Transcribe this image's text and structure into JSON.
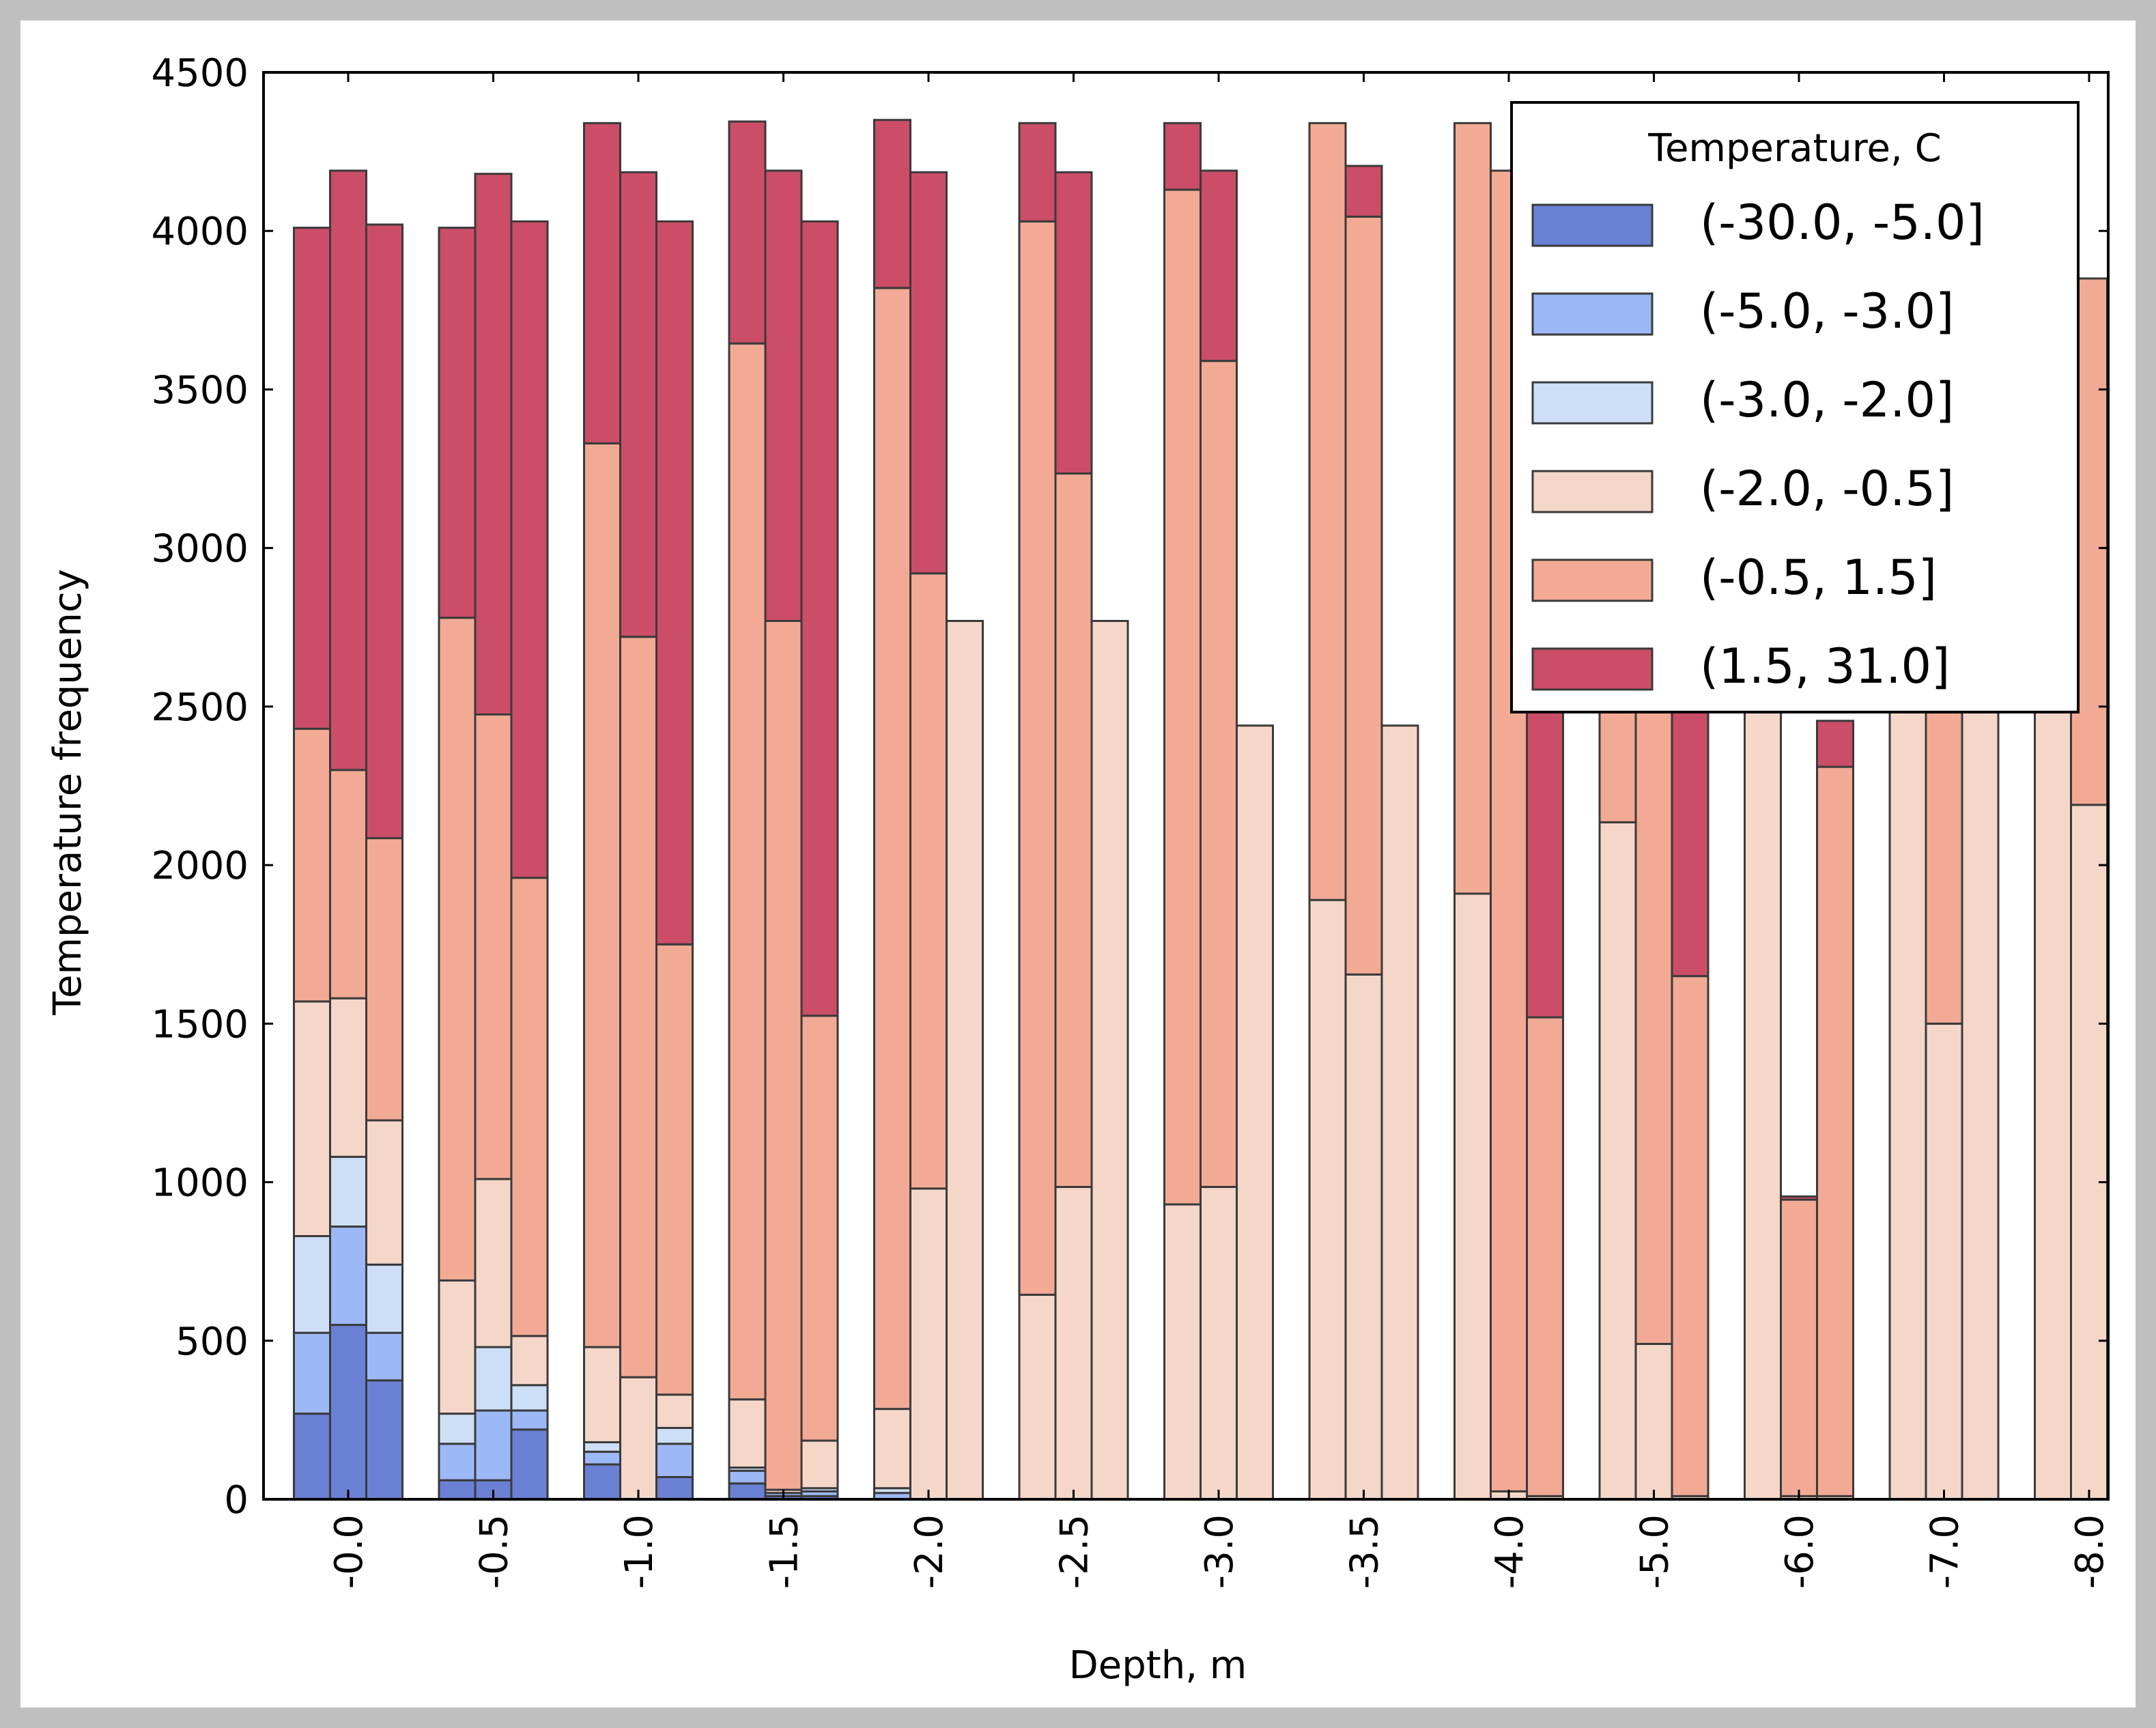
{
  "chart_data": {
    "type": "bar",
    "stacked": true,
    "grouped": true,
    "title": "",
    "xlabel": "Depth, m",
    "ylabel": "Temperature frequency",
    "ylim": [
      0,
      4500
    ],
    "yticks": [
      0,
      500,
      1000,
      1500,
      2000,
      2500,
      3000,
      3500,
      4000,
      4500
    ],
    "grid": false,
    "legend_title": "Temperature, C",
    "legend_position": "top-right",
    "categories": [
      "-0.0",
      "-0.5",
      "-1.0",
      "-1.5",
      "-2.0",
      "-2.5",
      "-3.0",
      "-3.5",
      "-4.0",
      "-5.0",
      "-6.0",
      "-7.0",
      "-8.0"
    ],
    "bars_per_group": 3,
    "series": [
      {
        "name": "(-30.0, -5.0]",
        "color": "#6a80d4",
        "values": [
          [
            270,
            550,
            375
          ],
          [
            60,
            60,
            220
          ],
          [
            110,
            0,
            70
          ],
          [
            50,
            10,
            10
          ],
          [
            0,
            0,
            0
          ],
          [
            0,
            0,
            0
          ],
          [
            0,
            0,
            0
          ],
          [
            0,
            0,
            0
          ],
          [
            0,
            0,
            0
          ],
          [
            0,
            0,
            0
          ],
          [
            0,
            0,
            0
          ],
          [
            0,
            0,
            0
          ],
          [
            0,
            0,
            0
          ]
        ]
      },
      {
        "name": "(-5.0, -3.0]",
        "color": "#9db8f6",
        "values": [
          [
            255,
            310,
            150
          ],
          [
            115,
            220,
            60
          ],
          [
            40,
            0,
            105
          ],
          [
            40,
            10,
            15
          ],
          [
            20,
            0,
            0
          ],
          [
            0,
            0,
            0
          ],
          [
            0,
            0,
            0
          ],
          [
            0,
            0,
            0
          ],
          [
            0,
            0,
            0
          ],
          [
            0,
            0,
            0
          ],
          [
            0,
            0,
            0
          ],
          [
            0,
            0,
            0
          ],
          [
            0,
            0,
            0
          ]
        ]
      },
      {
        "name": "(-3.0, -2.0]",
        "color": "#cddff7",
        "values": [
          [
            305,
            220,
            215
          ],
          [
            95,
            200,
            80
          ],
          [
            30,
            0,
            50
          ],
          [
            10,
            0,
            10
          ],
          [
            15,
            0,
            0
          ],
          [
            0,
            0,
            0
          ],
          [
            0,
            0,
            0
          ],
          [
            0,
            0,
            0
          ],
          [
            0,
            0,
            0
          ],
          [
            0,
            0,
            0
          ],
          [
            0,
            0,
            0
          ],
          [
            0,
            0,
            0
          ],
          [
            0,
            0,
            0
          ]
        ]
      },
      {
        "name": "(-2.0, -0.5]",
        "color": "#f4d7c9",
        "values": [
          [
            740,
            500,
            455
          ],
          [
            420,
            530,
            155
          ],
          [
            300,
            385,
            105
          ],
          [
            215,
            10,
            150
          ],
          [
            250,
            980,
            2770
          ],
          [
            645,
            985,
            2770
          ],
          [
            930,
            985,
            2440
          ],
          [
            1890,
            1655,
            2440
          ],
          [
            1910,
            25,
            10
          ],
          [
            2135,
            490,
            10
          ],
          [
            4340,
            10,
            10
          ],
          [
            4340,
            1500,
            4020
          ],
          [
            4340,
            2190,
            0
          ]
        ]
      },
      {
        "name": "(-0.5, 1.5]",
        "color": "#f2aa95",
        "values": [
          [
            860,
            720,
            890
          ],
          [
            2090,
            1465,
            1445
          ],
          [
            2850,
            2335,
            1420
          ],
          [
            3330,
            2740,
            1340
          ],
          [
            3535,
            1940,
            0
          ],
          [
            3385,
            2250,
            0
          ],
          [
            3200,
            2605,
            0
          ],
          [
            2450,
            2390,
            0
          ],
          [
            2430,
            4165,
            1510
          ],
          [
            2205,
            3690,
            1640
          ],
          [
            0,
            935,
            2300
          ],
          [
            0,
            2690,
            0
          ],
          [
            0,
            1660,
            0
          ]
        ]
      },
      {
        "name": "(1.5, 31.0]",
        "color": "#cc4d67",
        "values": [
          [
            1580,
            1890,
            1935
          ],
          [
            1230,
            1705,
            2070
          ],
          [
            1010,
            1465,
            2280
          ],
          [
            700,
            1420,
            2505
          ],
          [
            530,
            1265,
            0
          ],
          [
            310,
            950,
            0
          ],
          [
            210,
            600,
            0
          ],
          [
            0,
            160,
            0
          ],
          [
            0,
            0,
            2510
          ],
          [
            0,
            0,
            2380
          ],
          [
            0,
            10,
            145
          ],
          [
            0,
            0,
            0
          ],
          [
            0,
            0,
            0
          ]
        ]
      }
    ]
  }
}
